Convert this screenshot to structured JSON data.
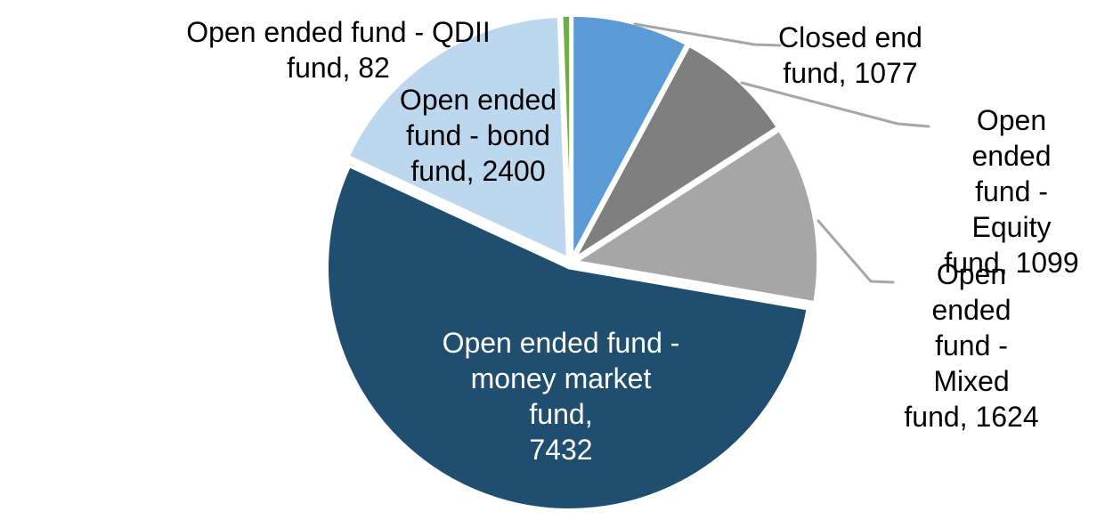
{
  "chart_data": {
    "type": "pie",
    "title": "",
    "legend": "none",
    "label_format": "name, value",
    "direction": "clockwise",
    "start_angle_deg": 0,
    "total": 13714,
    "slice_border_color": "#FFFFFF",
    "leader_line_color": "#A6A6A6",
    "series": [
      {
        "id": "closed-end-fund",
        "name": "Closed end fund",
        "value": 1077,
        "color": "#5B9BD5"
      },
      {
        "id": "open-ended-equity-fund",
        "name": "Open ended fund - Equity fund",
        "value": 1099,
        "color": "#7F7F7F"
      },
      {
        "id": "open-ended-mixed-fund",
        "name": "Open ended fund - Mixed fund",
        "value": 1624,
        "color": "#A6A6A6"
      },
      {
        "id": "open-ended-money-market-fund",
        "name": "Open ended fund - money market fund",
        "value": 7432,
        "color": "#1F4E6E"
      },
      {
        "id": "open-ended-bond-fund",
        "name": "Open ended fund - bond fund",
        "value": 2400,
        "color": "#BDD7EE"
      },
      {
        "id": "open-ended-qdii-fund",
        "name": "Open ended fund - QDII fund",
        "value": 82,
        "color": "#70AD47"
      }
    ]
  },
  "labels": {
    "qdii": {
      "text": "Open ended fund - QDII\nfund, 82",
      "color": "#000000"
    },
    "bond": {
      "text": "Open ended\nfund - bond\nfund, 2400",
      "color": "#000000"
    },
    "closed_end": {
      "text": "Closed end\nfund, 1077",
      "color": "#000000"
    },
    "equity": {
      "text": "Open ended\nfund - Equity\nfund, 1099",
      "color": "#000000"
    },
    "mixed": {
      "text": "Open ended\nfund - Mixed\nfund, 1624",
      "color": "#000000"
    },
    "money_market": {
      "text": "Open ended fund -\nmoney market fund,\n7432",
      "color": "#FFFFFF"
    }
  }
}
